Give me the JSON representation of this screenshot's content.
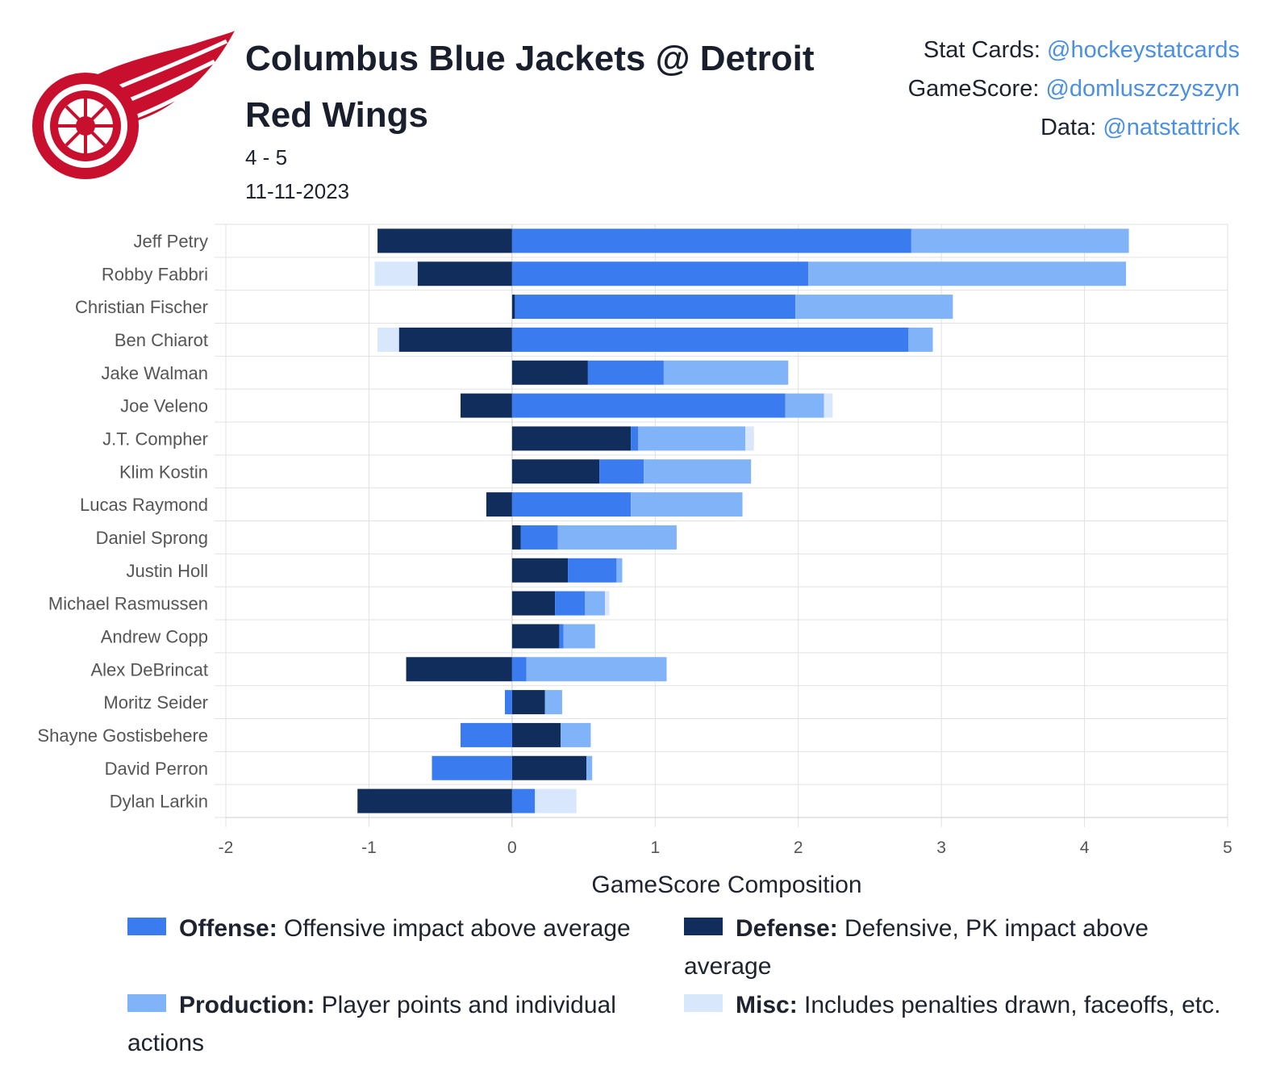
{
  "header": {
    "title": "Columbus Blue Jackets @ Detroit Red Wings",
    "score": "4 - 5",
    "date": "11-11-2023",
    "logo_text": "Detroit Red Wings"
  },
  "credits": [
    {
      "label": "Stat Cards: ",
      "handle": "@hockeystatcards"
    },
    {
      "label": "GameScore: ",
      "handle": "@domluszczyszyn"
    },
    {
      "label": "Data: ",
      "handle": "@natstattrick"
    }
  ],
  "legend": [
    {
      "name": "Offense:",
      "desc": " Offensive impact above average",
      "color": "#3a7cf0"
    },
    {
      "name": "Defense:",
      "desc": " Defensive, PK impact above average",
      "color": "#112d5c"
    },
    {
      "name": "Production:",
      "desc": " Player points and individual actions",
      "color": "#80b3f7"
    },
    {
      "name": "Misc:",
      "desc": " Includes penalties drawn, faceoffs, etc.",
      "color": "#d9e7fc"
    }
  ],
  "chart_data": {
    "type": "bar",
    "orientation": "horizontal",
    "stacked": true,
    "xlabel": "GameScore Composition",
    "xlim": [
      -2,
      5
    ],
    "xticks": [
      "-2",
      "-1",
      "0",
      "1",
      "2",
      "3",
      "4",
      "5"
    ],
    "grid": true,
    "categories": [
      "Jeff Petry",
      "Robby Fabbri",
      "Christian Fischer",
      "Ben Chiarot",
      "Jake Walman",
      "Joe Veleno",
      "J.T. Compher",
      "Klim Kostin",
      "Lucas Raymond",
      "Daniel Sprong",
      "Justin Holl",
      "Michael Rasmussen",
      "Andrew Copp",
      "Alex DeBrincat",
      "Moritz Seider",
      "Shayne Gostisbehere",
      "David Perron",
      "Dylan Larkin"
    ],
    "series": [
      {
        "name": "Defense",
        "color": "#112d5c",
        "values": [
          -0.94,
          -0.66,
          0.02,
          -0.79,
          0.53,
          -0.36,
          0.83,
          0.61,
          -0.18,
          0.06,
          0.39,
          0.3,
          0.33,
          -0.74,
          0.23,
          0.34,
          0.52,
          -1.08
        ]
      },
      {
        "name": "Offense",
        "color": "#3a7cf0",
        "values": [
          2.79,
          2.07,
          1.96,
          2.77,
          0.53,
          1.91,
          0.05,
          0.31,
          0.83,
          0.26,
          0.34,
          0.21,
          0.03,
          0.1,
          -0.05,
          -0.36,
          -0.56,
          0.16
        ]
      },
      {
        "name": "Production",
        "color": "#80b3f7",
        "values": [
          1.52,
          2.22,
          1.1,
          0.17,
          0.87,
          0.27,
          0.75,
          0.75,
          0.78,
          0.83,
          0.04,
          0.14,
          0.22,
          0.98,
          0.12,
          0.21,
          0.04,
          0
        ]
      },
      {
        "name": "Misc",
        "color": "#d9e7fc",
        "values": [
          0,
          -0.3,
          0,
          -0.15,
          0,
          0.06,
          0.06,
          0,
          0,
          0,
          0,
          0.03,
          0,
          0,
          0,
          0,
          0,
          0.29
        ]
      }
    ]
  }
}
